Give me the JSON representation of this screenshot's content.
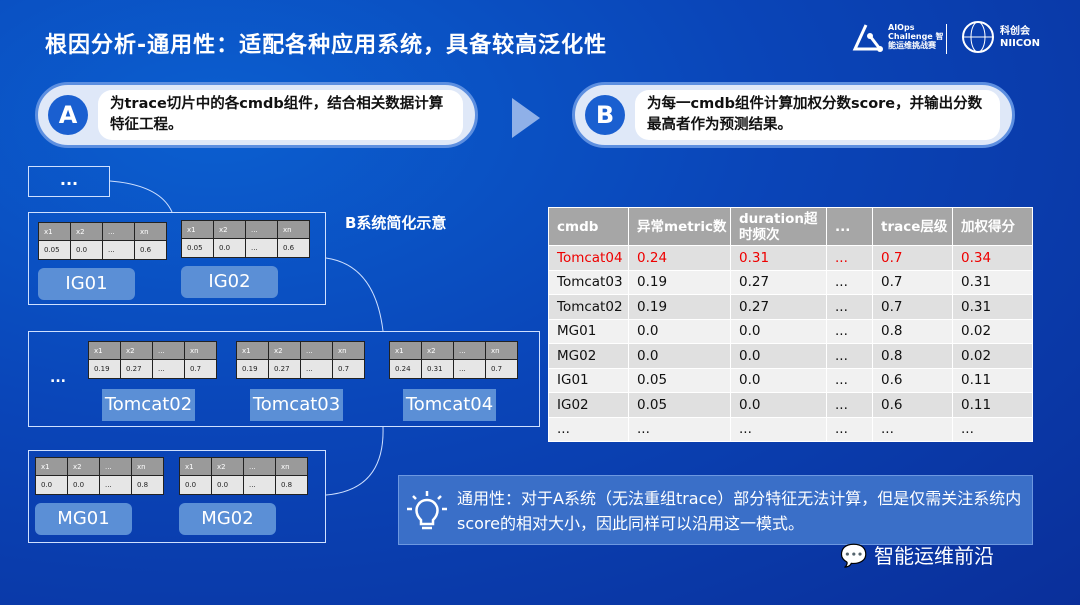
{
  "title": "根因分析-通用性：适配各种应用系统，具备较高泛化性",
  "logos": {
    "aiops": "AIOps Challenge 智能运维挑战赛",
    "niicon": "科创会 NIICON"
  },
  "step_a": {
    "badge": "A",
    "text": "为trace切片中的各cmdb组件，结合相关数据计算特征工程。"
  },
  "step_b": {
    "badge": "B",
    "text": "为每一cmdb组件计算加权分数score，并输出分数最高者作为预测结果。"
  },
  "diagram": {
    "label": "B系统简化示意",
    "ellipsis": "...",
    "headers": [
      "x1",
      "x2",
      "...",
      "xn"
    ],
    "groups": [
      {
        "components": [
          {
            "name": "IG01",
            "values": [
              "0.05",
              "0.0",
              "...",
              "0.6"
            ]
          },
          {
            "name": "IG02",
            "values": [
              "0.05",
              "0.0",
              "...",
              "0.6"
            ]
          }
        ]
      },
      {
        "components": [
          {
            "name": "Tomcat02",
            "values": [
              "0.19",
              "0.27",
              "...",
              "0.7"
            ]
          },
          {
            "name": "Tomcat03",
            "values": [
              "0.19",
              "0.27",
              "...",
              "0.7"
            ]
          },
          {
            "name": "Tomcat04",
            "values": [
              "0.24",
              "0.31",
              "...",
              "0.7"
            ]
          }
        ]
      },
      {
        "components": [
          {
            "name": "MG01",
            "values": [
              "0.0",
              "0.0",
              "...",
              "0.8"
            ]
          },
          {
            "name": "MG02",
            "values": [
              "0.0",
              "0.0",
              "...",
              "0.8"
            ]
          }
        ]
      }
    ]
  },
  "score_table": {
    "headers": [
      "cmdb",
      "异常metric数",
      "duration超时频次",
      "...",
      "trace层级",
      "加权得分"
    ],
    "highlight_color": "#e00000",
    "rows": [
      [
        "Tomcat04",
        "0.24",
        "0.31",
        "...",
        "0.7",
        "0.34"
      ],
      [
        "Tomcat03",
        "0.19",
        "0.27",
        "...",
        "0.7",
        "0.31"
      ],
      [
        "Tomcat02",
        "0.19",
        "0.27",
        "...",
        "0.7",
        "0.31"
      ],
      [
        "MG01",
        "0.0",
        "0.0",
        "...",
        "0.8",
        "0.02"
      ],
      [
        "MG02",
        "0.0",
        "0.0",
        "...",
        "0.8",
        "0.02"
      ],
      [
        "IG01",
        "0.05",
        "0.0",
        "...",
        "0.6",
        "0.11"
      ],
      [
        "IG02",
        "0.05",
        "0.0",
        "...",
        "0.6",
        "0.11"
      ],
      [
        "...",
        "...",
        "...",
        "...",
        "...",
        "..."
      ]
    ]
  },
  "tip": {
    "icon": "lightbulb-icon",
    "text": "通用性：对于A系统（无法重组trace）部分特征无法计算，但是仅需关注系统内score的相对大小，因此同样可以沿用这一模式。"
  },
  "watermark": "智能运维前沿"
}
